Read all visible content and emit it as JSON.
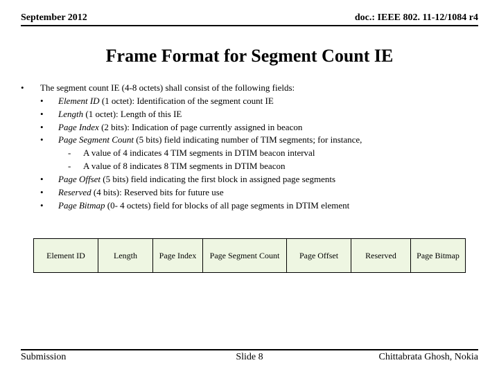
{
  "header": {
    "date": "September 2012",
    "doc": "doc.: IEEE 802. 11-12/1084 r4"
  },
  "title": "Frame Format for Segment Count IE",
  "body": {
    "intro": "The segment count IE (4-8 octets) shall consist of the following fields:",
    "items": [
      {
        "term": "Element ID",
        "rest": " (1 octet): Identification of the segment count IE"
      },
      {
        "term": "Length",
        "rest": " (1 octet): Length of this IE"
      },
      {
        "term": "Page Index",
        "rest": " (2 bits): Indication of page currently assigned in beacon"
      },
      {
        "term": "Page Segment Count",
        "rest": " (5 bits) field indicating number of TIM segments; for instance,"
      }
    ],
    "sub": [
      "A value of 4 indicates 4 TIM segments in DTIM beacon interval",
      "A value of 8 indicates 8 TIM segments in DTIM beacon"
    ],
    "items2": [
      {
        "term": "Page Offset",
        "rest": " (5 bits) field indicating the first block in assigned page segments"
      },
      {
        "term": "Reserved",
        "rest": " (4 bits): Reserved bits for future use"
      },
      {
        "term": "Page Bitmap",
        "rest": " (0- 4 octets) field for blocks of all page segments in DTIM element"
      }
    ]
  },
  "diagram": {
    "cells": [
      "Element ID",
      "Length",
      "Page Index",
      "Page Segment Count",
      "Page Offset",
      "Reserved",
      "Page Bitmap"
    ],
    "bg": "#eef6e2",
    "widths": [
      1.2,
      1.0,
      0.9,
      1.6,
      1.2,
      1.1,
      1.0
    ]
  },
  "footer": {
    "left": "Submission",
    "center": "Slide 8",
    "right": "Chittabrata Ghosh, Nokia"
  }
}
